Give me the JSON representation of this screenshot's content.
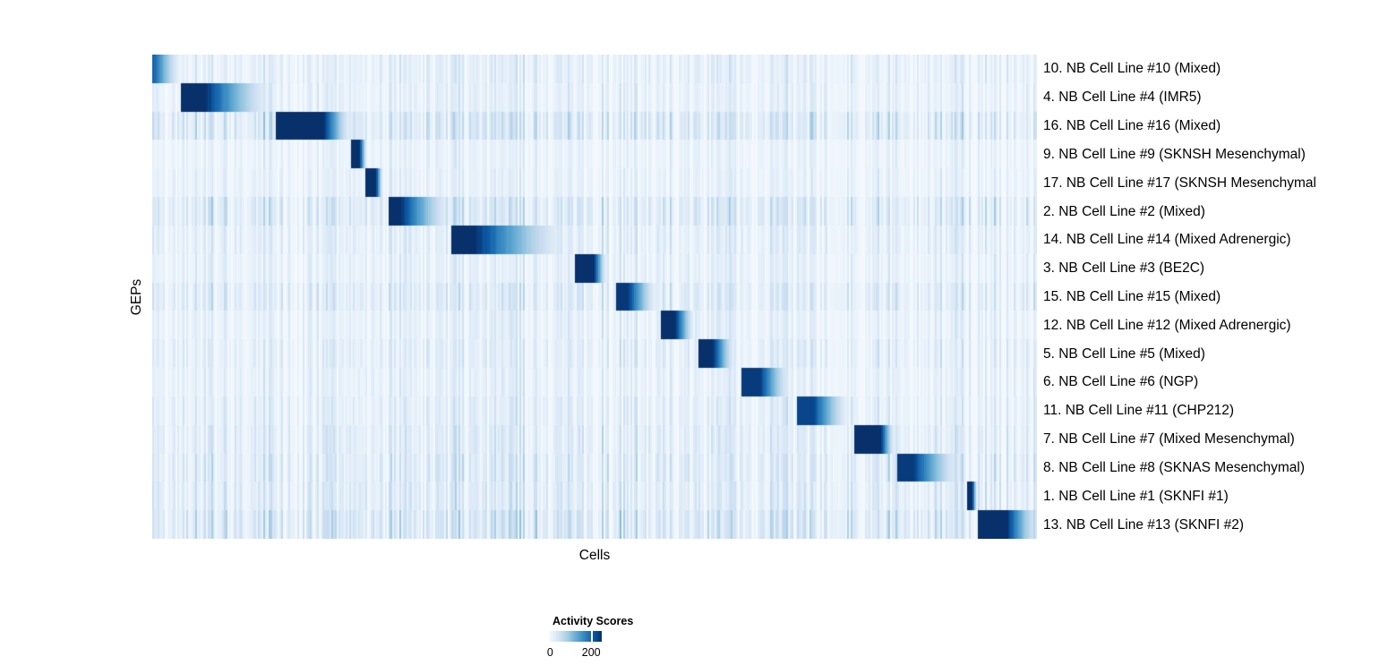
{
  "chart_data": {
    "type": "heatmap",
    "title": "",
    "xlabel": "Cells",
    "ylabel": "GEPs",
    "value_label": "Activity Scores",
    "value_range": [
      0,
      250
    ],
    "legend_ticks": [
      0,
      200
    ],
    "colormap": "Blues",
    "colormap_stops": [
      "#f7fbff",
      "#deebf7",
      "#c6dbef",
      "#9ecae1",
      "#6baed6",
      "#4292c6",
      "#2171b5",
      "#08519c",
      "#08306b"
    ],
    "n_rows": 17,
    "x_axis": {
      "label": "Cells",
      "tick_labels": []
    },
    "y_axis": {
      "label": "GEPs",
      "row_labels_side": "right"
    },
    "rows": [
      {
        "label": "10. NB Cell Line #10 (Mixed)",
        "block": {
          "start": 0.0,
          "dark_end": 0.004,
          "end": 0.036,
          "peak": 0.78,
          "tail": 0.0
        },
        "noise": 0.55
      },
      {
        "label": "4. NB Cell Line #4 (IMR5)",
        "block": {
          "start": 0.0324,
          "dark_end": 0.0617,
          "end": 0.1427,
          "peak": 1.0,
          "tail": 0.0
        },
        "noise": 0.5
      },
      {
        "label": "16. NB Cell Line #16 (Mixed)",
        "block": {
          "start": 0.1387,
          "dark_end": 0.1943,
          "end": 0.2287,
          "peak": 1.0,
          "tail": 0.0
        },
        "noise": 0.9
      },
      {
        "label": "9. NB Cell Line #9 (SKNSH Mesenchymal)",
        "block": {
          "start": 0.2257,
          "dark_end": 0.2348,
          "end": 0.244,
          "peak": 1.0,
          "tail": 0.0
        },
        "noise": 0.4
      },
      {
        "label": "17. NB Cell Line #17 (SKNSH Mesenchymal",
        "block": {
          "start": 0.2419,
          "dark_end": 0.253,
          "end": 0.262,
          "peak": 1.0,
          "tail": 0.0
        },
        "noise": 0.45
      },
      {
        "label": "2. NB Cell Line #2 (Mixed)",
        "block": {
          "start": 0.2662,
          "dark_end": 0.2814,
          "end": 0.3441,
          "peak": 1.0,
          "tail": 0.0
        },
        "noise": 0.85
      },
      {
        "label": "14. NB Cell Line #14 (Mixed Adrenergic)",
        "block": {
          "start": 0.3371,
          "dark_end": 0.3664,
          "end": 0.4787,
          "peak": 1.0,
          "tail": 0.0
        },
        "noise": 0.6
      },
      {
        "label": "3. NB Cell Line #3 (BE2C)",
        "block": {
          "start": 0.4787,
          "dark_end": 0.4999,
          "end": 0.5152,
          "peak": 1.0,
          "tail": 0.0
        },
        "noise": 0.5
      },
      {
        "label": "15. NB Cell Line #15 (Mixed)",
        "block": {
          "start": 0.5233,
          "dark_end": 0.5385,
          "end": 0.5739,
          "peak": 0.97,
          "tail": 0.0
        },
        "noise": 0.75
      },
      {
        "label": "12. NB Cell Line #12 (Mixed Adrenergic)",
        "block": {
          "start": 0.5739,
          "dark_end": 0.5921,
          "end": 0.6154,
          "peak": 1.0,
          "tail": 0.0
        },
        "noise": 0.5
      },
      {
        "label": "5. NB Cell Line #5 (Mixed)",
        "block": {
          "start": 0.6174,
          "dark_end": 0.6346,
          "end": 0.6619,
          "peak": 1.0,
          "tail": 0.0
        },
        "noise": 0.6
      },
      {
        "label": "6. NB Cell Line #6 (NGP)",
        "block": {
          "start": 0.667,
          "dark_end": 0.6873,
          "end": 0.7257,
          "peak": 0.96,
          "tail": 0.0
        },
        "noise": 0.5
      },
      {
        "label": "11. NB Cell Line #11 (CHP212)",
        "block": {
          "start": 0.7287,
          "dark_end": 0.748,
          "end": 0.7925,
          "peak": 0.92,
          "tail": 0.0
        },
        "noise": 0.6
      },
      {
        "label": "7. NB Cell Line #7 (Mixed Mesenchymal)",
        "block": {
          "start": 0.7945,
          "dark_end": 0.8239,
          "end": 0.8411,
          "peak": 1.0,
          "tail": 0.0
        },
        "noise": 0.7
      },
      {
        "label": "8. NB Cell Line #8 (SKNAS Mesenchymal)",
        "block": {
          "start": 0.8411,
          "dark_end": 0.861,
          "end": 0.919,
          "peak": 0.96,
          "tail": 0.0
        },
        "noise": 0.75
      },
      {
        "label": "1. NB Cell Line #1 (SKNFI #1)",
        "block": {
          "start": 0.9211,
          "dark_end": 0.9271,
          "end": 0.9332,
          "peak": 1.0,
          "tail": 0.0
        },
        "noise": 0.75
      },
      {
        "label": "13. NB Cell Line #13 (SKNFI #2)",
        "block": {
          "start": 0.9342,
          "dark_end": 0.9666,
          "end": 1.0,
          "peak": 1.0,
          "tail": 0.14
        },
        "noise": 1.0
      }
    ]
  },
  "legend": {
    "title": "Activity Scores",
    "tick_labels": [
      "0",
      "200"
    ],
    "min": 0,
    "max": 200,
    "tick_fraction": 0.8
  }
}
